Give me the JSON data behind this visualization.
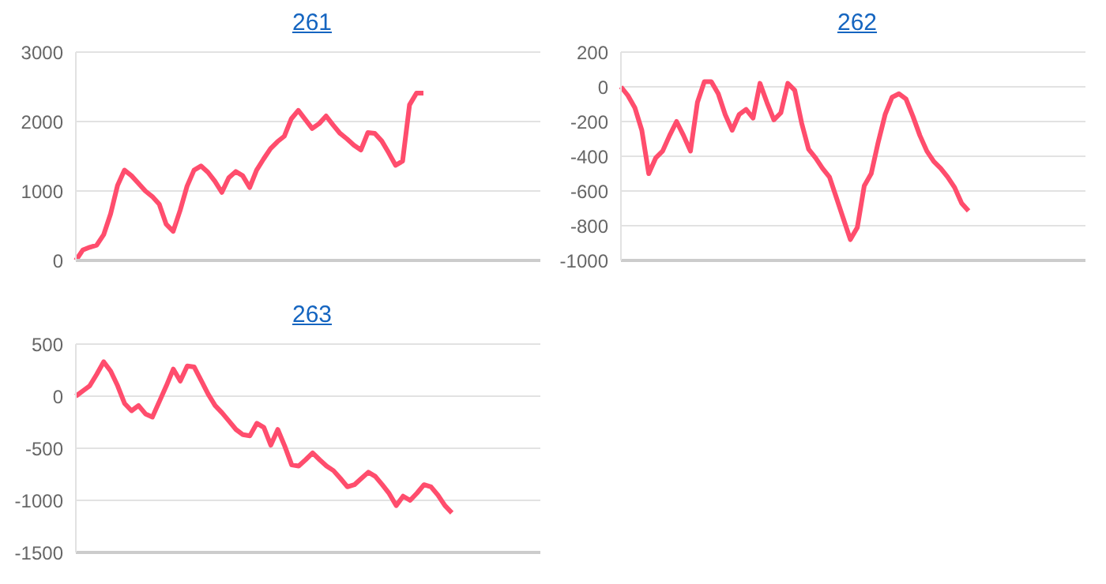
{
  "chart_data": [
    {
      "type": "line",
      "title": "261",
      "categories": [
        null,
        null,
        null,
        null,
        null,
        null,
        null,
        null,
        null,
        null,
        null,
        null,
        null,
        null,
        null,
        null,
        null,
        null,
        null,
        null,
        null,
        null,
        null,
        null,
        null,
        null,
        null,
        null,
        null,
        null,
        null,
        null,
        null,
        null,
        null,
        null,
        null,
        null,
        null,
        null,
        null,
        null,
        null,
        null,
        null,
        null,
        null,
        null,
        null,
        null,
        null
      ],
      "ylim": [
        0,
        3000
      ],
      "yticks": [
        0,
        1000,
        2000,
        3000
      ],
      "grid": "y",
      "marker": "none",
      "line_style": "solid",
      "series": [
        {
          "color": "#ff4d6d",
          "values": [
            0,
            150,
            190,
            220,
            370,
            670,
            1080,
            1300,
            1220,
            1110,
            1000,
            920,
            810,
            520,
            420,
            720,
            1070,
            1300,
            1360,
            1270,
            1140,
            980,
            1190,
            1280,
            1220,
            1050,
            1300,
            1460,
            1610,
            1710,
            1790,
            2040,
            2160,
            2030,
            1900,
            1970,
            2080,
            1950,
            1830,
            1750,
            1660,
            1590,
            1840,
            1830,
            1720,
            1550,
            1370,
            1430,
            2240,
            2410,
            2410
          ]
        }
      ]
    },
    {
      "type": "line",
      "title": "262",
      "categories": [
        null,
        null,
        null,
        null,
        null,
        null,
        null,
        null,
        null,
        null,
        null,
        null,
        null,
        null,
        null,
        null,
        null,
        null,
        null,
        null,
        null,
        null,
        null,
        null,
        null,
        null,
        null,
        null,
        null,
        null,
        null,
        null,
        null,
        null,
        null,
        null,
        null,
        null,
        null,
        null,
        null,
        null,
        null,
        null,
        null,
        null,
        null,
        null,
        null,
        null,
        null
      ],
      "ylim": [
        -1000,
        200
      ],
      "yticks": [
        -1000,
        -800,
        -600,
        -400,
        -200,
        0,
        200
      ],
      "grid": "y",
      "marker": "none",
      "line_style": "solid",
      "series": [
        {
          "color": "#ff4d6d",
          "values": [
            0,
            -50,
            -120,
            -250,
            -500,
            -410,
            -370,
            -280,
            -200,
            -280,
            -370,
            -90,
            30,
            30,
            -40,
            -160,
            -250,
            -160,
            -130,
            -180,
            20,
            -90,
            -190,
            -150,
            20,
            -20,
            -210,
            -360,
            -410,
            -470,
            -520,
            -640,
            -760,
            -880,
            -810,
            -570,
            -500,
            -320,
            -160,
            -60,
            -40,
            -70,
            -170,
            -280,
            -370,
            -430,
            -470,
            -520,
            -580,
            -670,
            -715
          ]
        }
      ]
    },
    {
      "type": "line",
      "title": "263",
      "categories": [
        null,
        null,
        null,
        null,
        null,
        null,
        null,
        null,
        null,
        null,
        null,
        null,
        null,
        null,
        null,
        null,
        null,
        null,
        null,
        null,
        null,
        null,
        null,
        null,
        null,
        null,
        null,
        null,
        null,
        null,
        null,
        null,
        null,
        null,
        null,
        null,
        null,
        null,
        null,
        null,
        null,
        null,
        null,
        null,
        null,
        null,
        null,
        null,
        null,
        null,
        null,
        null,
        null,
        null,
        null
      ],
      "ylim": [
        -1500,
        500
      ],
      "yticks": [
        -1500,
        -1000,
        -500,
        0,
        500
      ],
      "grid": "y",
      "marker": "none",
      "line_style": "solid",
      "series": [
        {
          "color": "#ff4d6d",
          "values": [
            0,
            50,
            100,
            210,
            330,
            240,
            100,
            -70,
            -140,
            -90,
            -170,
            -200,
            -50,
            100,
            260,
            145,
            290,
            280,
            150,
            20,
            -90,
            -160,
            -240,
            -320,
            -370,
            -380,
            -260,
            -300,
            -470,
            -320,
            -480,
            -660,
            -670,
            -610,
            -545,
            -610,
            -670,
            -715,
            -790,
            -870,
            -850,
            -790,
            -730,
            -770,
            -850,
            -935,
            -1050,
            -960,
            -1000,
            -930,
            -850,
            -870,
            -950,
            -1050,
            -1120
          ]
        }
      ]
    }
  ]
}
